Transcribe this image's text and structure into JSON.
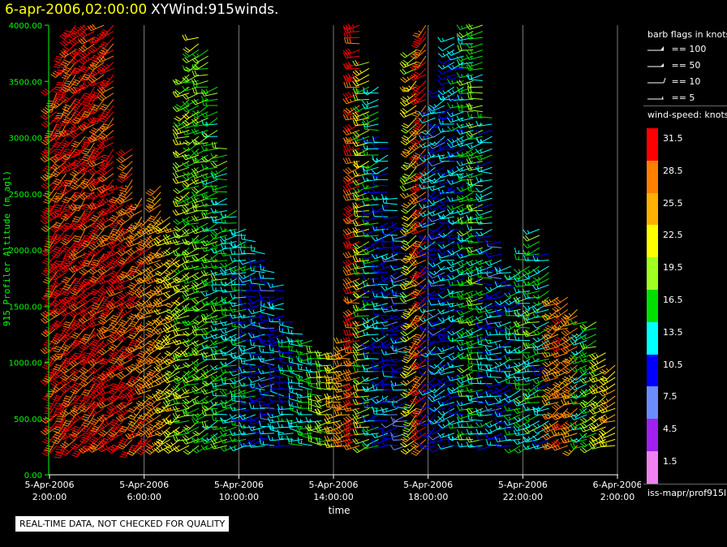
{
  "header": {
    "date_time": "6-apr-2006,02:00:00",
    "product": "XYWind:915winds."
  },
  "legend": {
    "flags_title": "barb flags in knots",
    "flags": [
      "== 100",
      "== 50",
      "== 10",
      "== 5"
    ],
    "speed_title": "wind-speed: knots",
    "speed_bins": [
      {
        "label": "31.5",
        "color": "#ff0000"
      },
      {
        "label": "28.5",
        "color": "#ff8000"
      },
      {
        "label": "25.5",
        "color": "#ffb000"
      },
      {
        "label": "22.5",
        "color": "#ffff00"
      },
      {
        "label": "19.5",
        "color": "#a0ff20"
      },
      {
        "label": "16.5",
        "color": "#00e000"
      },
      {
        "label": "13.5",
        "color": "#00ffff"
      },
      {
        "label": "10.5",
        "color": "#0000ff"
      },
      {
        "label": "7.5",
        "color": "#6a8cff"
      },
      {
        "label": "4.5",
        "color": "#a020f0"
      },
      {
        "label": "1.5",
        "color": "#ee82ee"
      }
    ],
    "site": "iss-mapr/prof915l"
  },
  "note": "REAL-TIME DATA, NOT CHECKED FOR QUALITY",
  "chart_data": {
    "type": "wind-barb time-height",
    "ylabel": "915 Profiler Altitude (m agl)",
    "xlabel": "time",
    "ylim": [
      0,
      4000
    ],
    "y_ticks": [
      "0.00",
      "500.00",
      "1000.00",
      "1500.00",
      "2000.00",
      "2500.00",
      "3000.00",
      "3500.00",
      "4000.00"
    ],
    "x_ticks": [
      {
        "date": "5-Apr-2006",
        "time": "2:00:00"
      },
      {
        "date": "5-Apr-2006",
        "time": "6:00:00"
      },
      {
        "date": "5-Apr-2006",
        "time": "10:00:00"
      },
      {
        "date": "5-Apr-2006",
        "time": "14:00:00"
      },
      {
        "date": "5-Apr-2006",
        "time": "18:00:00"
      },
      {
        "date": "5-Apr-2006",
        "time": "22:00:00"
      },
      {
        "date": "6-Apr-2006",
        "time": "2:00:00"
      }
    ],
    "x_range_hours": [
      0,
      24
    ],
    "vertical_grid": true,
    "profiles": [
      {
        "hour": 0.2,
        "top": 3500,
        "speed": 31,
        "dir": 220
      },
      {
        "hour": 0.6,
        "top": 3800,
        "speed": 31,
        "dir": 220
      },
      {
        "hour": 1.0,
        "top": 4000,
        "speed": 31,
        "dir": 225
      },
      {
        "hour": 1.4,
        "top": 4000,
        "speed": 31,
        "dir": 225
      },
      {
        "hour": 1.8,
        "top": 4000,
        "speed": 31,
        "dir": 225
      },
      {
        "hour": 2.2,
        "top": 4000,
        "speed": 31,
        "dir": 230
      },
      {
        "hour": 2.6,
        "top": 4000,
        "speed": 31,
        "dir": 230
      },
      {
        "hour": 3.0,
        "top": 2600,
        "speed": 31,
        "dir": 230
      },
      {
        "hour": 3.4,
        "top": 2900,
        "speed": 30,
        "dir": 230
      },
      {
        "hour": 3.8,
        "top": 2500,
        "speed": 29,
        "dir": 230
      },
      {
        "hour": 4.2,
        "top": 2300,
        "speed": 28,
        "dir": 235
      },
      {
        "hour": 4.6,
        "top": 2600,
        "speed": 27,
        "dir": 235
      },
      {
        "hour": 5.0,
        "top": 2300,
        "speed": 24,
        "dir": 240
      },
      {
        "hour": 5.4,
        "top": 2200,
        "speed": 22,
        "dir": 240
      },
      {
        "hour": 5.8,
        "top": 3600,
        "speed": 20,
        "dir": 245
      },
      {
        "hour": 6.2,
        "top": 3900,
        "speed": 19,
        "dir": 245
      },
      {
        "hour": 6.6,
        "top": 3800,
        "speed": 18,
        "dir": 250
      },
      {
        "hour": 7.0,
        "top": 3500,
        "speed": 17,
        "dir": 250
      },
      {
        "hour": 7.4,
        "top": 2900,
        "speed": 16,
        "dir": 255
      },
      {
        "hour": 7.8,
        "top": 2400,
        "speed": 15,
        "dir": 255
      },
      {
        "hour": 8.2,
        "top": 2200,
        "speed": 14,
        "dir": 260
      },
      {
        "hour": 8.6,
        "top": 2100,
        "speed": 13,
        "dir": 260
      },
      {
        "hour": 9.0,
        "top": 2000,
        "speed": 12,
        "dir": 265
      },
      {
        "hour": 9.4,
        "top": 1800,
        "speed": 11,
        "dir": 270
      },
      {
        "hour": 9.8,
        "top": 1700,
        "speed": 12,
        "dir": 270
      },
      {
        "hour": 10.2,
        "top": 1400,
        "speed": 13,
        "dir": 275
      },
      {
        "hour": 10.6,
        "top": 1300,
        "speed": 14,
        "dir": 275
      },
      {
        "hour": 11.0,
        "top": 1200,
        "speed": 15,
        "dir": 270
      },
      {
        "hour": 11.4,
        "top": 1100,
        "speed": 17,
        "dir": 270
      },
      {
        "hour": 11.8,
        "top": 1100,
        "speed": 20,
        "dir": 265
      },
      {
        "hour": 12.2,
        "top": 1100,
        "speed": 24,
        "dir": 260
      },
      {
        "hour": 12.6,
        "top": 1200,
        "speed": 27,
        "dir": 255
      },
      {
        "hour": 13.0,
        "top": 4000,
        "speed": 30,
        "dir": 255
      },
      {
        "hour": 13.4,
        "top": 3700,
        "speed": 20,
        "dir": 255
      },
      {
        "hour": 13.8,
        "top": 3500,
        "speed": 14,
        "dir": 255
      },
      {
        "hour": 14.2,
        "top": 3000,
        "speed": 12,
        "dir": 255
      },
      {
        "hour": 14.6,
        "top": 2500,
        "speed": 11,
        "dir": 260
      },
      {
        "hour": 15.0,
        "top": 2200,
        "speed": 10,
        "dir": 260
      },
      {
        "hour": 15.4,
        "top": 3800,
        "speed": 22,
        "dir": 230
      },
      {
        "hour": 15.8,
        "top": 4000,
        "speed": 30,
        "dir": 230
      },
      {
        "hour": 16.2,
        "top": 3300,
        "speed": 12,
        "dir": 240
      },
      {
        "hour": 16.6,
        "top": 3500,
        "speed": 11,
        "dir": 245
      },
      {
        "hour": 17.0,
        "top": 3900,
        "speed": 12,
        "dir": 250
      },
      {
        "hour": 17.4,
        "top": 3800,
        "speed": 13,
        "dir": 255
      },
      {
        "hour": 17.8,
        "top": 4000,
        "speed": 16,
        "dir": 255
      },
      {
        "hour": 18.2,
        "top": 4000,
        "speed": 17,
        "dir": 260
      },
      {
        "hour": 18.6,
        "top": 3200,
        "speed": 13,
        "dir": 260
      },
      {
        "hour": 19.0,
        "top": 2100,
        "speed": 11,
        "dir": 260
      },
      {
        "hour": 19.4,
        "top": 1900,
        "speed": 12,
        "dir": 255
      },
      {
        "hour": 19.8,
        "top": 1800,
        "speed": 14,
        "dir": 255
      },
      {
        "hour": 20.2,
        "top": 2000,
        "speed": 16,
        "dir": 255
      },
      {
        "hour": 20.6,
        "top": 2200,
        "speed": 16,
        "dir": 250
      },
      {
        "hour": 21.0,
        "top": 2000,
        "speed": 14,
        "dir": 250
      },
      {
        "hour": 21.4,
        "top": 1600,
        "speed": 27,
        "dir": 240
      },
      {
        "hour": 21.8,
        "top": 1600,
        "speed": 29,
        "dir": 240
      },
      {
        "hour": 22.2,
        "top": 1500,
        "speed": 27,
        "dir": 240
      },
      {
        "hour": 22.6,
        "top": 1400,
        "speed": 15,
        "dir": 245
      },
      {
        "hour": 23.0,
        "top": 1400,
        "speed": 18,
        "dir": 245
      },
      {
        "hour": 23.4,
        "top": 1100,
        "speed": 22,
        "dir": 245
      },
      {
        "hour": 23.8,
        "top": 1000,
        "speed": 24,
        "dir": 245
      }
    ]
  }
}
